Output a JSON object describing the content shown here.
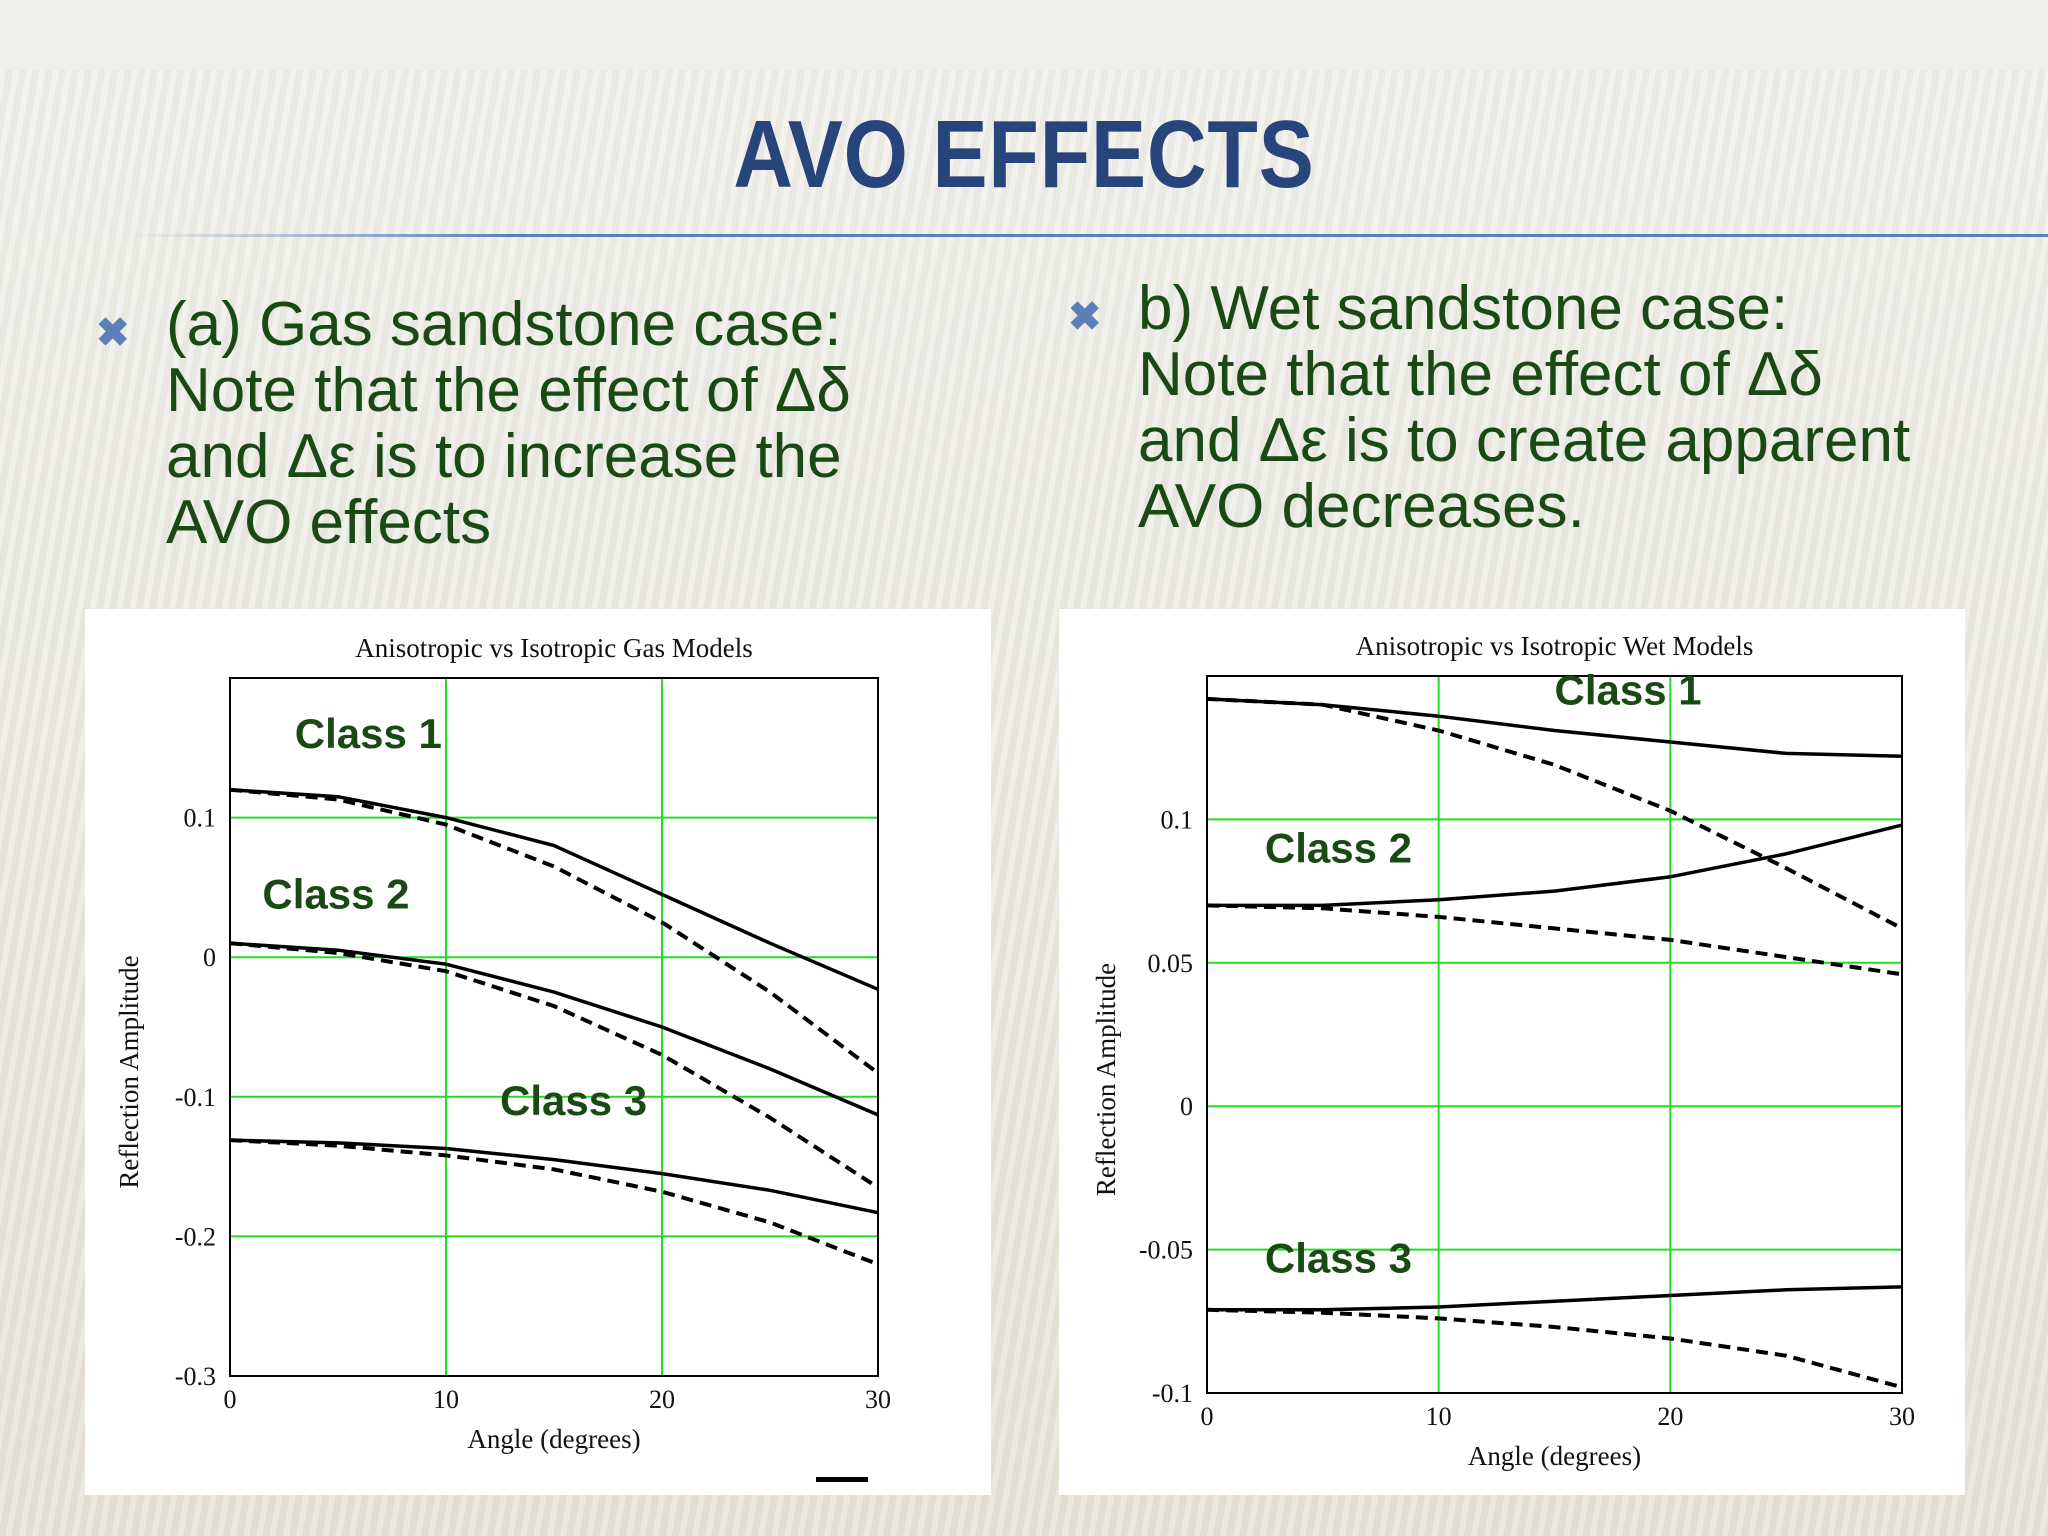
{
  "slide": {
    "title": "AVO EFFECTS",
    "bullets": [
      {
        "text": "(a) Gas sandstone case:\nNote that the effect of Δδ\nand Δε is to increase the\nAVO effects"
      },
      {
        "text": "b) Wet sandstone case:\nNote that the effect of Δδ\nand Δε is to create apparent\nAVO decreases."
      }
    ],
    "colors": {
      "title": "#27457a",
      "text": "#1a4a14",
      "bullet_marker": "#5b7fb8",
      "grid": "#22dd22"
    },
    "bullet_icon": "x-mark-icon"
  },
  "chart_data": [
    {
      "type": "line",
      "title": "Anisotropic vs Isotropic Gas Models",
      "xlabel": "Angle (degrees)",
      "ylabel": "Reflection Amplitude",
      "xlim": [
        0,
        30
      ],
      "ylim": [
        -0.3,
        0.2
      ],
      "xticks": [
        0,
        10,
        20,
        30
      ],
      "yticks": [
        -0.3,
        -0.2,
        -0.1,
        0,
        0.1
      ],
      "ytick_labels": [
        "-0.3",
        "-0.2",
        "-0.1",
        "0",
        "0.1"
      ],
      "xtick_labels": [
        "0",
        "10",
        "20",
        "30"
      ],
      "grid": true,
      "x": [
        0,
        5,
        10,
        15,
        20,
        25,
        30
      ],
      "series": [
        {
          "style": "solid",
          "values": [
            0.12,
            0.115,
            0.1,
            0.08,
            0.045,
            0.01,
            -0.023
          ]
        },
        {
          "style": "dashed",
          "values": [
            0.12,
            0.113,
            0.095,
            0.065,
            0.025,
            -0.025,
            -0.083
          ]
        },
        {
          "style": "solid",
          "values": [
            0.01,
            0.005,
            -0.005,
            -0.025,
            -0.05,
            -0.08,
            -0.113
          ]
        },
        {
          "style": "dashed",
          "values": [
            0.01,
            0.003,
            -0.01,
            -0.035,
            -0.07,
            -0.115,
            -0.165
          ]
        },
        {
          "style": "solid",
          "values": [
            -0.131,
            -0.133,
            -0.137,
            -0.145,
            -0.155,
            -0.167,
            -0.183
          ]
        },
        {
          "style": "dashed",
          "values": [
            -0.131,
            -0.135,
            -0.142,
            -0.152,
            -0.168,
            -0.19,
            -0.22
          ]
        }
      ],
      "annotations": [
        {
          "text": "Class 1",
          "x": 3,
          "y": 0.15
        },
        {
          "text": "Class 2",
          "x": 1.5,
          "y": 0.035
        },
        {
          "text": "Class 3",
          "x": 12.5,
          "y": -0.113
        }
      ]
    },
    {
      "type": "line",
      "title": "Anisotropic vs Isotropic Wet Models",
      "xlabel": "Angle (degrees)",
      "ylabel": "Reflection Amplitude",
      "xlim": [
        0,
        30
      ],
      "ylim": [
        -0.1,
        0.15
      ],
      "xticks": [
        0,
        10,
        20,
        30
      ],
      "yticks": [
        -0.1,
        -0.05,
        0,
        0.05,
        0.1
      ],
      "ytick_labels": [
        "-0.1",
        "-0.05",
        "0",
        "0.05",
        "0.1"
      ],
      "xtick_labels": [
        "0",
        "10",
        "20",
        "30"
      ],
      "grid": true,
      "x": [
        0,
        5,
        10,
        15,
        20,
        25,
        30
      ],
      "series": [
        {
          "style": "solid",
          "values": [
            0.142,
            0.14,
            0.136,
            0.131,
            0.127,
            0.123,
            0.122
          ]
        },
        {
          "style": "dashed",
          "values": [
            0.142,
            0.14,
            0.131,
            0.119,
            0.103,
            0.083,
            0.062
          ]
        },
        {
          "style": "solid",
          "values": [
            0.07,
            0.07,
            0.072,
            0.075,
            0.08,
            0.088,
            0.098
          ]
        },
        {
          "style": "dashed",
          "values": [
            0.07,
            0.069,
            0.066,
            0.062,
            0.058,
            0.052,
            0.046
          ]
        },
        {
          "style": "solid",
          "values": [
            -0.071,
            -0.071,
            -0.07,
            -0.068,
            -0.066,
            -0.064,
            -0.063
          ]
        },
        {
          "style": "dashed",
          "values": [
            -0.071,
            -0.072,
            -0.074,
            -0.077,
            -0.081,
            -0.087,
            -0.098
          ]
        }
      ],
      "annotations": [
        {
          "text": "Class 1",
          "x": 15,
          "y": 0.14
        },
        {
          "text": "Class 2",
          "x": 2.5,
          "y": 0.085
        },
        {
          "text": "Class 3",
          "x": 2.5,
          "y": -0.058
        }
      ]
    }
  ]
}
